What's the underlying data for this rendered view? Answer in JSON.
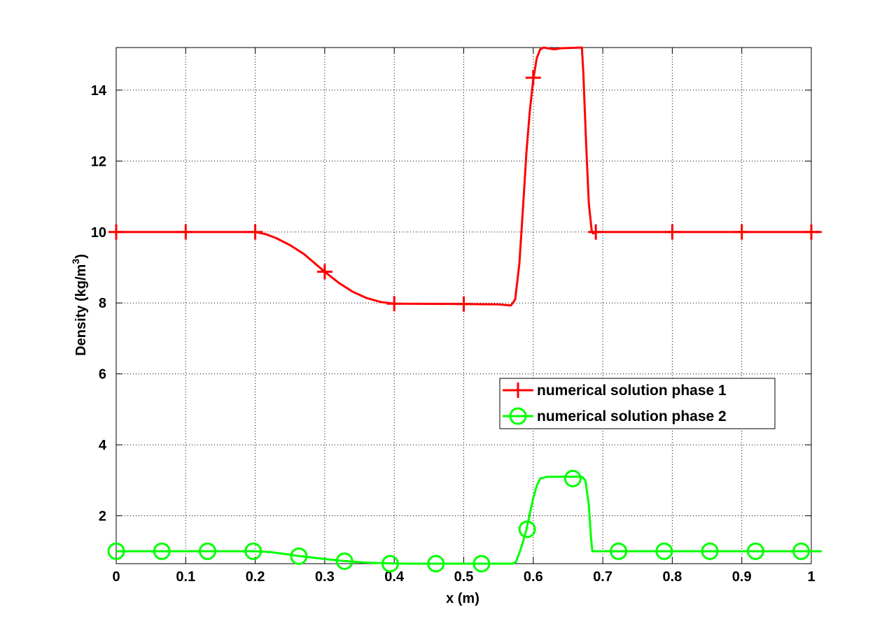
{
  "chart_data": {
    "type": "line",
    "title": "",
    "xlabel": "x (m)",
    "ylabel_main": "Density (kg/m",
    "ylabel_sup": "3",
    "ylabel_close": ")",
    "xlim": [
      0,
      1
    ],
    "ylim": [
      0.65,
      15.2
    ],
    "grid": true,
    "grid_style": "dotted",
    "legend_position": "lower-right",
    "x_ticks": [
      0,
      0.1,
      0.2,
      0.3,
      0.4,
      0.5,
      0.6,
      0.7,
      0.8,
      0.9,
      1
    ],
    "x_tick_labels": [
      "0",
      "0.1",
      "0.2",
      "0.3",
      "0.4",
      "0.5",
      "0.6",
      "0.7",
      "0.8",
      "0.9",
      "1"
    ],
    "y_ticks": [
      2,
      4,
      6,
      8,
      10,
      12,
      14
    ],
    "y_tick_labels": [
      "2",
      "4",
      "6",
      "8",
      "10",
      "12",
      "14"
    ],
    "series": [
      {
        "name": "numerical solution phase 1",
        "color": "#ff0000",
        "marker": "plus",
        "line": [
          [
            0,
            10
          ],
          [
            0.2,
            10
          ],
          [
            0.215,
            9.94
          ],
          [
            0.23,
            9.83
          ],
          [
            0.25,
            9.63
          ],
          [
            0.27,
            9.38
          ],
          [
            0.3,
            8.88
          ],
          [
            0.32,
            8.57
          ],
          [
            0.34,
            8.32
          ],
          [
            0.36,
            8.14
          ],
          [
            0.38,
            8.03
          ],
          [
            0.4,
            7.98
          ],
          [
            0.5,
            7.97
          ],
          [
            0.55,
            7.96
          ],
          [
            0.568,
            7.93
          ],
          [
            0.574,
            8.1
          ],
          [
            0.58,
            9.1
          ],
          [
            0.585,
            10.6
          ],
          [
            0.59,
            12.2
          ],
          [
            0.595,
            13.4
          ],
          [
            0.6,
            14.3
          ],
          [
            0.605,
            14.9
          ],
          [
            0.61,
            15.15
          ],
          [
            0.615,
            15.2
          ],
          [
            0.63,
            15.15
          ],
          [
            0.64,
            15.18
          ],
          [
            0.67,
            15.2
          ],
          [
            0.672,
            14.5
          ],
          [
            0.676,
            12.5
          ],
          [
            0.68,
            10.8
          ],
          [
            0.684,
            10.05
          ],
          [
            0.686,
            9.96
          ],
          [
            0.69,
            10
          ],
          [
            1.015,
            10
          ]
        ],
        "markers": [
          [
            0,
            10
          ],
          [
            0.1,
            10
          ],
          [
            0.2,
            10
          ],
          [
            0.3,
            8.88
          ],
          [
            0.4,
            7.98
          ],
          [
            0.5,
            7.97
          ],
          [
            0.6,
            14.35
          ],
          [
            0.69,
            10
          ],
          [
            0.8,
            10
          ],
          [
            0.9,
            10
          ],
          [
            1,
            10
          ]
        ]
      },
      {
        "name": "numerical solution phase 2",
        "color": "#00ff00",
        "marker": "circle",
        "line": [
          [
            0,
            1
          ],
          [
            0.2,
            1
          ],
          [
            0.22,
            0.98
          ],
          [
            0.24,
            0.93
          ],
          [
            0.265,
            0.86
          ],
          [
            0.3,
            0.78
          ],
          [
            0.33,
            0.72
          ],
          [
            0.36,
            0.68
          ],
          [
            0.39,
            0.66
          ],
          [
            0.42,
            0.65
          ],
          [
            0.57,
            0.65
          ],
          [
            0.575,
            0.7
          ],
          [
            0.58,
            0.95
          ],
          [
            0.585,
            1.25
          ],
          [
            0.59,
            1.6
          ],
          [
            0.595,
            2.05
          ],
          [
            0.6,
            2.5
          ],
          [
            0.605,
            2.85
          ],
          [
            0.61,
            3.05
          ],
          [
            0.62,
            3.1
          ],
          [
            0.67,
            3.1
          ],
          [
            0.675,
            3.0
          ],
          [
            0.68,
            2.3
          ],
          [
            0.683,
            1.4
          ],
          [
            0.685,
            1.0
          ],
          [
            1.015,
            1.0
          ]
        ],
        "markers": [
          [
            0,
            1
          ],
          [
            0.0657,
            1
          ],
          [
            0.1314,
            1
          ],
          [
            0.1971,
            1
          ],
          [
            0.2628,
            0.86
          ],
          [
            0.3285,
            0.72
          ],
          [
            0.3942,
            0.65
          ],
          [
            0.4599,
            0.65
          ],
          [
            0.5256,
            0.65
          ],
          [
            0.5913,
            1.62
          ],
          [
            0.657,
            3.05
          ],
          [
            0.7227,
            1.0
          ],
          [
            0.7884,
            1.0
          ],
          [
            0.8541,
            1.0
          ],
          [
            0.9198,
            1.0
          ],
          [
            0.9855,
            1.0
          ]
        ]
      }
    ]
  }
}
